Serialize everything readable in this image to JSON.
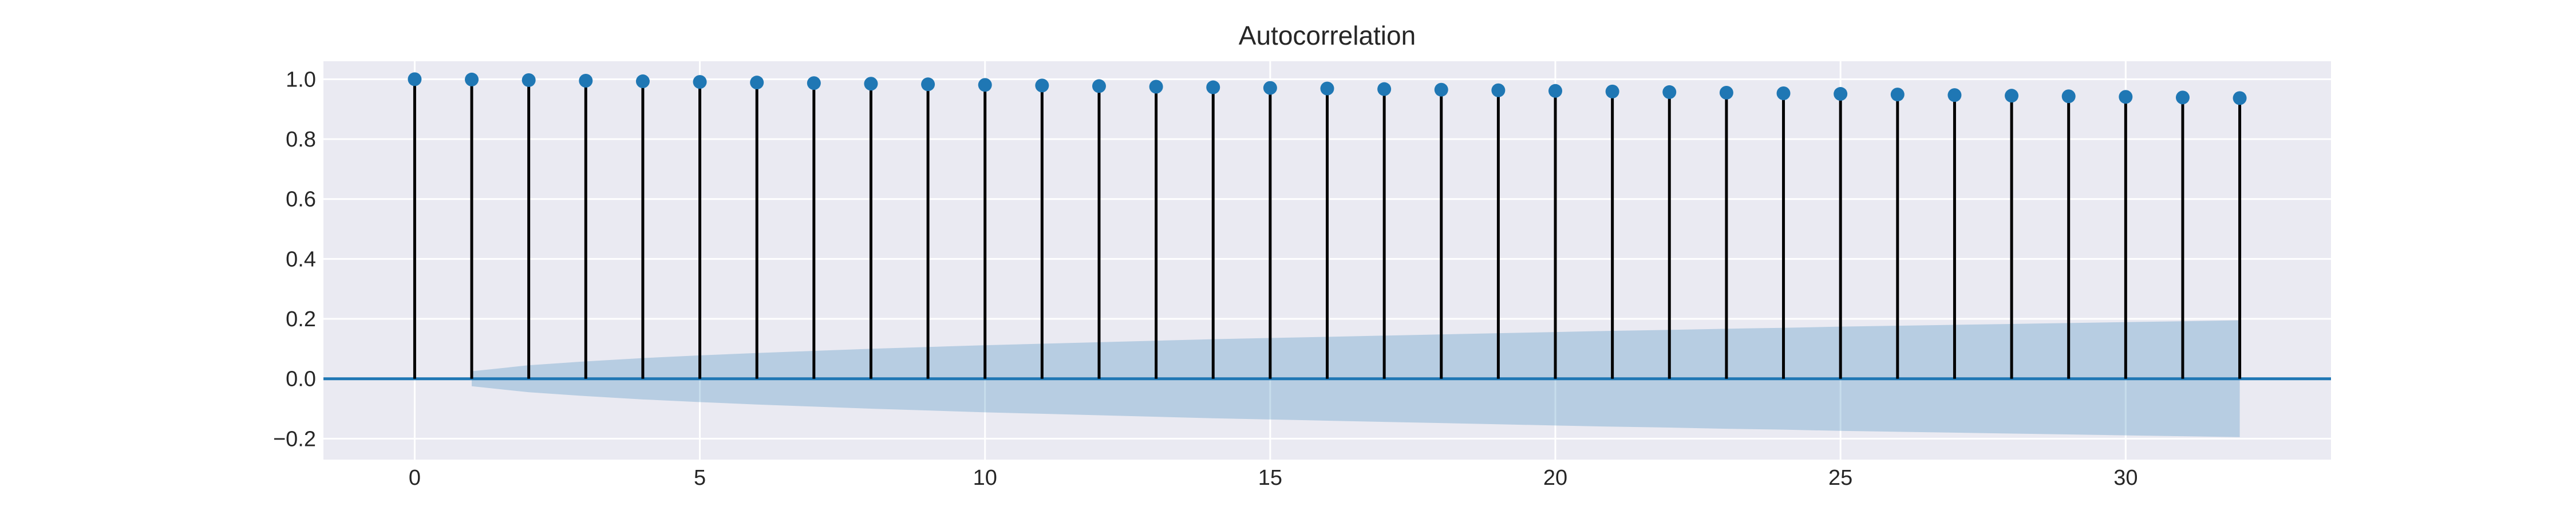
{
  "chart_data": {
    "type": "stem",
    "title": "Autocorrelation",
    "xlabel": "",
    "ylabel": "",
    "xlim": [
      -1.6,
      33.6
    ],
    "ylim": [
      -0.27,
      1.06
    ],
    "xticks": [
      0,
      5,
      10,
      15,
      20,
      25,
      30
    ],
    "yticks": [
      -0.2,
      0.0,
      0.2,
      0.4,
      0.6,
      0.8,
      1.0
    ],
    "ytick_labels": [
      "−0.2",
      "0.0",
      "0.2",
      "0.4",
      "0.6",
      "0.8",
      "1.0"
    ],
    "lags": [
      0,
      1,
      2,
      3,
      4,
      5,
      6,
      7,
      8,
      9,
      10,
      11,
      12,
      13,
      14,
      15,
      16,
      17,
      18,
      19,
      20,
      21,
      22,
      23,
      24,
      25,
      26,
      27,
      28,
      29,
      30,
      31,
      32
    ],
    "values": [
      1.0,
      0.999,
      0.997,
      0.995,
      0.993,
      0.991,
      0.989,
      0.987,
      0.985,
      0.983,
      0.981,
      0.979,
      0.977,
      0.975,
      0.973,
      0.971,
      0.969,
      0.967,
      0.965,
      0.963,
      0.961,
      0.959,
      0.957,
      0.955,
      0.953,
      0.951,
      0.949,
      0.947,
      0.945,
      0.943,
      0.941,
      0.939,
      0.937
    ],
    "confidence_band": {
      "lags": [
        1,
        2,
        3,
        4,
        5,
        6,
        7,
        8,
        9,
        10,
        11,
        12,
        13,
        14,
        15,
        16,
        17,
        18,
        19,
        20,
        21,
        22,
        23,
        24,
        25,
        26,
        27,
        28,
        29,
        30,
        31,
        32
      ],
      "upper": [
        0.025,
        0.045,
        0.058,
        0.069,
        0.078,
        0.086,
        0.093,
        0.1,
        0.106,
        0.112,
        0.117,
        0.122,
        0.127,
        0.132,
        0.136,
        0.14,
        0.144,
        0.148,
        0.152,
        0.156,
        0.16,
        0.163,
        0.167,
        0.17,
        0.174,
        0.177,
        0.18,
        0.183,
        0.186,
        0.189,
        0.192,
        0.195
      ]
    },
    "grid": true,
    "colors": {
      "background": "#eaeaf2",
      "grid": "#ffffff",
      "marker": "#1f77b4",
      "stem": "#000000",
      "zero_line": "#1f77b4",
      "band": "#1f77b4"
    }
  }
}
